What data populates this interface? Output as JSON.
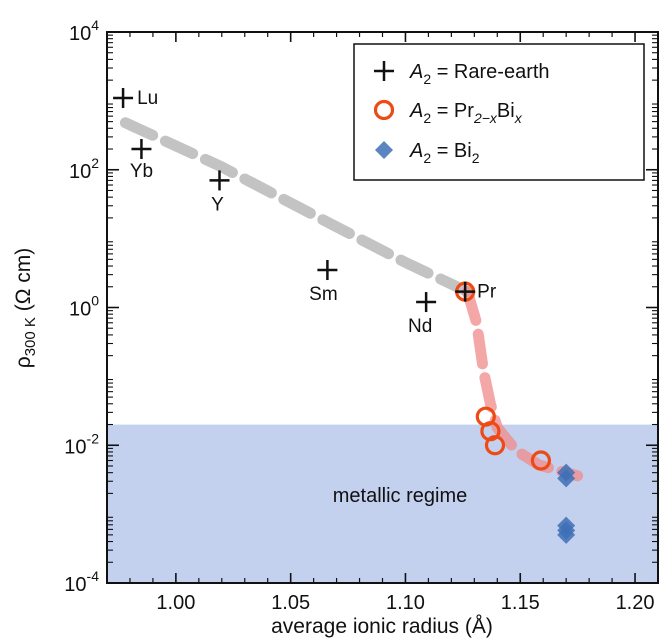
{
  "chart_data": {
    "type": "scatter",
    "title": "",
    "xlabel": "average ionic radius (Å)",
    "ylabel": {
      "main": "ρ",
      "sub": "300 K",
      "unit": " (Ω cm)"
    },
    "xlim": [
      0.97,
      1.21
    ],
    "ylim_log10": [
      -4,
      4
    ],
    "y_scale": "log",
    "x_ticks": [
      "1.00",
      "1.05",
      "1.10",
      "1.15",
      "1.20"
    ],
    "x_tick_values": [
      1.0,
      1.05,
      1.1,
      1.15,
      1.2
    ],
    "y_ticks": [
      {
        "base": "10",
        "exp": "-4",
        "value": -4
      },
      {
        "base": "10",
        "exp": "-2",
        "value": -2
      },
      {
        "base": "10",
        "exp": "0",
        "value": 0
      },
      {
        "base": "10",
        "exp": "2",
        "value": 2
      },
      {
        "base": "10",
        "exp": "4",
        "value": 4
      }
    ],
    "region": {
      "label": "metallic regime",
      "y_max_log10": -1.7,
      "color": "#c3d1ee"
    },
    "series": [
      {
        "name_parts": [
          "A",
          "2",
          " = Rare-earth"
        ],
        "marker": "plus",
        "color": "#111111",
        "points": [
          {
            "x": 0.977,
            "y": 1100,
            "label": "Lu"
          },
          {
            "x": 0.985,
            "y": 200,
            "label": "Yb"
          },
          {
            "x": 1.019,
            "y": 70,
            "label": "Y"
          },
          {
            "x": 1.066,
            "y": 3.5,
            "label": "Sm"
          },
          {
            "x": 1.109,
            "y": 1.2,
            "label": "Nd"
          },
          {
            "x": 1.126,
            "y": 1.7,
            "label": "Pr"
          }
        ]
      },
      {
        "name_parts": [
          "A",
          "2",
          " = Pr",
          "2−x",
          "Bi",
          "x"
        ],
        "marker": "circle",
        "color": "#ee4a15",
        "points": [
          {
            "x": 1.126,
            "y": 1.7
          },
          {
            "x": 1.135,
            "y": 0.026
          },
          {
            "x": 1.137,
            "y": 0.016
          },
          {
            "x": 1.139,
            "y": 0.01
          },
          {
            "x": 1.159,
            "y": 0.006
          }
        ]
      },
      {
        "name_parts": [
          "A",
          "2",
          " = Bi",
          "2"
        ],
        "marker": "diamond",
        "color": "#3e6fb5",
        "points": [
          {
            "x": 1.17,
            "y": 0.004
          },
          {
            "x": 1.17,
            "y": 0.0033
          },
          {
            "x": 1.17,
            "y": 0.00068
          },
          {
            "x": 1.17,
            "y": 0.00058
          },
          {
            "x": 1.17,
            "y": 0.0005
          }
        ]
      }
    ],
    "guides": [
      {
        "color": "#b8b8b8",
        "opacity": 0.85,
        "points": [
          [
            0.978,
            480
          ],
          [
            1.02,
            110
          ],
          [
            1.06,
            22
          ],
          [
            1.1,
            4.5
          ],
          [
            1.127,
            1.7
          ]
        ]
      },
      {
        "color": "#f08a8a",
        "opacity": 0.75,
        "points": [
          [
            1.127,
            1.7
          ],
          [
            1.131,
            0.6
          ],
          [
            1.134,
            0.12
          ],
          [
            1.137,
            0.04
          ],
          [
            1.14,
            0.018
          ],
          [
            1.148,
            0.0085
          ],
          [
            1.158,
            0.0052
          ],
          [
            1.17,
            0.004
          ],
          [
            1.175,
            0.0036
          ]
        ]
      }
    ],
    "grid": false,
    "legend_position": "top-right"
  }
}
